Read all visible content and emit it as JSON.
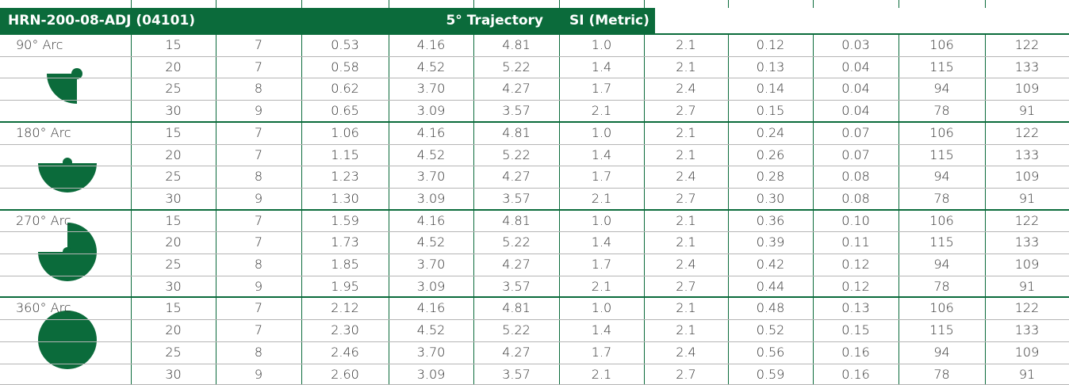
{
  "header": {
    "model": "HRN-200-08-ADJ (04101)",
    "trajectory": "5° Trajectory",
    "units": "SI (Metric)"
  },
  "table": {
    "groups": [
      {
        "label": "90° Arc",
        "rows": [
          [
            "15",
            "7",
            "0.53",
            "4.16",
            "4.81",
            "1.0",
            "2.1",
            "0.12",
            "0.03",
            "106",
            "122"
          ],
          [
            "20",
            "7",
            "0.58",
            "4.52",
            "5.22",
            "1.4",
            "2.1",
            "0.13",
            "0.04",
            "115",
            "133"
          ],
          [
            "25",
            "8",
            "0.62",
            "3.70",
            "4.27",
            "1.7",
            "2.4",
            "0.14",
            "0.04",
            "94",
            "109"
          ],
          [
            "30",
            "9",
            "0.65",
            "3.09",
            "3.57",
            "2.1",
            "2.7",
            "0.15",
            "0.04",
            "78",
            "91"
          ]
        ]
      },
      {
        "label": "180° Arc",
        "rows": [
          [
            "15",
            "7",
            "1.06",
            "4.16",
            "4.81",
            "1.0",
            "2.1",
            "0.24",
            "0.07",
            "106",
            "122"
          ],
          [
            "20",
            "7",
            "1.15",
            "4.52",
            "5.22",
            "1.4",
            "2.1",
            "0.26",
            "0.07",
            "115",
            "133"
          ],
          [
            "25",
            "8",
            "1.23",
            "3.70",
            "4.27",
            "1.7",
            "2.4",
            "0.28",
            "0.08",
            "94",
            "109"
          ],
          [
            "30",
            "9",
            "1.30",
            "3.09",
            "3.57",
            "2.1",
            "2.7",
            "0.30",
            "0.08",
            "78",
            "91"
          ]
        ]
      },
      {
        "label": "270° Arc",
        "rows": [
          [
            "15",
            "7",
            "1.59",
            "4.16",
            "4.81",
            "1.0",
            "2.1",
            "0.36",
            "0.10",
            "106",
            "122"
          ],
          [
            "20",
            "7",
            "1.73",
            "4.52",
            "5.22",
            "1.4",
            "2.1",
            "0.39",
            "0.11",
            "115",
            "133"
          ],
          [
            "25",
            "8",
            "1.85",
            "3.70",
            "4.27",
            "1.7",
            "2.4",
            "0.42",
            "0.12",
            "94",
            "109"
          ],
          [
            "30",
            "9",
            "1.95",
            "3.09",
            "3.57",
            "2.1",
            "2.7",
            "0.44",
            "0.12",
            "78",
            "91"
          ]
        ]
      },
      {
        "label": "360° Arc",
        "rows": [
          [
            "15",
            "7",
            "2.12",
            "4.16",
            "4.81",
            "1.0",
            "2.1",
            "0.48",
            "0.13",
            "106",
            "122"
          ],
          [
            "20",
            "7",
            "2.30",
            "4.52",
            "5.22",
            "1.4",
            "2.1",
            "0.52",
            "0.15",
            "115",
            "133"
          ],
          [
            "25",
            "8",
            "2.46",
            "3.70",
            "4.27",
            "1.7",
            "2.4",
            "0.56",
            "0.16",
            "94",
            "109"
          ],
          [
            "30",
            "9",
            "2.60",
            "3.09",
            "3.57",
            "2.1",
            "2.7",
            "0.59",
            "0.16",
            "78",
            "91"
          ]
        ]
      }
    ]
  }
}
